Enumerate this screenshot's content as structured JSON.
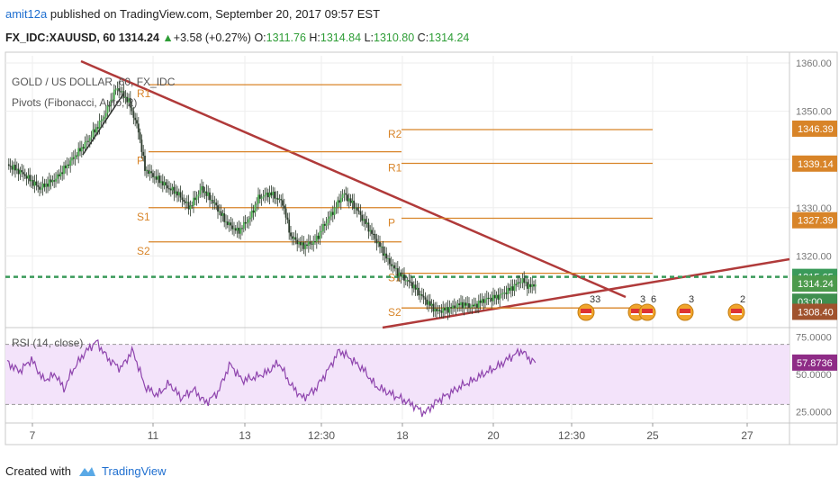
{
  "header": {
    "user": "amit12a",
    "published_text": "published on TradingView.com, September 20, 2017 09:57 EST",
    "symbol": "FX_IDC:XAUUSD, 60",
    "last": "1314.24",
    "change": "+3.58 (+0.27%)",
    "o_label": "O:",
    "o": "1311.76",
    "h_label": "H:",
    "h": "1314.84",
    "l_label": "L:",
    "l": "1310.80",
    "c_label": "C:",
    "c": "1314.24"
  },
  "legend": {
    "title": "GOLD / US DOLLAR, 60, FX_IDC",
    "indicator": "Pivots (Fibonacci, Auto, 2)",
    "rsi": "RSI (14, close)"
  },
  "footer": {
    "created_with": "Created with",
    "brand": "TradingView"
  },
  "colors": {
    "pivot": "#d88428",
    "trend": "#b03a3a",
    "up": "#4caf50",
    "down": "#ef5350",
    "rsi_line": "#8e44ad",
    "rsi_band": "#f3e3fa",
    "dash_green": "#3a9a5a",
    "candle": "#2b3a2b"
  },
  "chart_data": [
    {
      "type": "candlestick",
      "title": "GOLD / US DOLLAR, 60, FX_IDC",
      "x_ticks": [
        "7",
        "11",
        "13",
        "12:30",
        "18",
        "20",
        "12:30",
        "25",
        "27"
      ],
      "y_ticks": [
        "1360.00",
        "1350.00",
        "1340.00",
        "1330.00",
        "1320.00"
      ],
      "ylim": [
        1305.5,
        1361.5
      ],
      "price_path": [
        [
          0,
          1339
        ],
        [
          2,
          1337
        ],
        [
          4,
          1334
        ],
        [
          6,
          1336
        ],
        [
          8,
          1340
        ],
        [
          10,
          1344
        ],
        [
          12,
          1349
        ],
        [
          13.5,
          1355
        ],
        [
          15,
          1352
        ],
        [
          16.2,
          1346
        ],
        [
          17,
          1338
        ],
        [
          18.5,
          1336
        ],
        [
          20,
          1334
        ],
        [
          21,
          1333
        ],
        [
          22.5,
          1330
        ],
        [
          24,
          1334
        ],
        [
          25.5,
          1331
        ],
        [
          27,
          1327
        ],
        [
          28.5,
          1325
        ],
        [
          30,
          1328
        ],
        [
          31,
          1332
        ],
        [
          32.5,
          1333
        ],
        [
          34,
          1331
        ],
        [
          35,
          1324
        ],
        [
          36.5,
          1322
        ],
        [
          38,
          1323
        ],
        [
          39,
          1326
        ],
        [
          40.5,
          1330
        ],
        [
          41.5,
          1333
        ],
        [
          43,
          1330
        ],
        [
          44.5,
          1326
        ],
        [
          46,
          1322
        ],
        [
          47,
          1319
        ],
        [
          48.5,
          1316
        ],
        [
          50,
          1314
        ],
        [
          51.5,
          1311
        ],
        [
          53,
          1308.5
        ],
        [
          54.5,
          1309
        ],
        [
          56,
          1310
        ],
        [
          57.5,
          1309.5
        ],
        [
          59,
          1311
        ],
        [
          60.5,
          1311.5
        ],
        [
          62,
          1313
        ],
        [
          63.5,
          1315
        ],
        [
          64.5,
          1313.5
        ],
        [
          65.2,
          1314.24
        ]
      ],
      "pivot_levels_left": [
        {
          "label": "R1",
          "value": 1355.5
        },
        {
          "label": "P",
          "value": 1341.6
        },
        {
          "label": "S1",
          "value": 1330.0
        },
        {
          "label": "S2",
          "value": 1322.9
        }
      ],
      "pivot_levels_right": [
        {
          "label": "R2",
          "value": 1346.2
        },
        {
          "label": "R1",
          "value": 1339.2
        },
        {
          "label": "P",
          "value": 1327.8
        },
        {
          "label": "S1",
          "value": 1316.4
        },
        {
          "label": "S2",
          "value": 1309.2
        }
      ],
      "price_labels": [
        {
          "text": "1346.39",
          "value": 1346.39
        },
        {
          "text": "1339.14",
          "value": 1339.14
        },
        {
          "text": "1327.39",
          "value": 1327.39
        },
        {
          "text": "1315.65",
          "value": 1315.65
        },
        {
          "text": "1314.24",
          "value": 1314.24
        },
        {
          "text": "03:00",
          "value": 1310.5
        },
        {
          "text": "1308.40",
          "value": 1308.4
        }
      ],
      "current_price_line": 1315.65,
      "event_badges": [
        "33",
        "3",
        "6",
        "3",
        "2"
      ]
    },
    {
      "type": "line",
      "title": "RSI (14, close)",
      "y_ticks": [
        "75.0000",
        "50.0000",
        "25.0000"
      ],
      "ylim": [
        20,
        80
      ],
      "band": [
        30,
        70
      ],
      "last_value": "57.8736",
      "values": [
        [
          0,
          58
        ],
        [
          1.5,
          52
        ],
        [
          3,
          60
        ],
        [
          4.5,
          46
        ],
        [
          6,
          50
        ],
        [
          7,
          40
        ],
        [
          8,
          52
        ],
        [
          9.5,
          64
        ],
        [
          11,
          72
        ],
        [
          12.5,
          60
        ],
        [
          14,
          54
        ],
        [
          15.5,
          66
        ],
        [
          17,
          42
        ],
        [
          18.5,
          36
        ],
        [
          20,
          44
        ],
        [
          21.5,
          34
        ],
        [
          23,
          40
        ],
        [
          24.5,
          31
        ],
        [
          26,
          38
        ],
        [
          27.5,
          57
        ],
        [
          29,
          46
        ],
        [
          30.5,
          48
        ],
        [
          32,
          51
        ],
        [
          33.5,
          58
        ],
        [
          35,
          43
        ],
        [
          36.5,
          34
        ],
        [
          38,
          40
        ],
        [
          39.5,
          52
        ],
        [
          41,
          66
        ],
        [
          42.5,
          60
        ],
        [
          44,
          53
        ],
        [
          45.5,
          42
        ],
        [
          47,
          38
        ],
        [
          48.5,
          34
        ],
        [
          50,
          30
        ],
        [
          51.5,
          24
        ],
        [
          53,
          32
        ],
        [
          54.5,
          37
        ],
        [
          56,
          42
        ],
        [
          57.5,
          46
        ],
        [
          59,
          51
        ],
        [
          60.5,
          55
        ],
        [
          62,
          61
        ],
        [
          63.5,
          66
        ],
        [
          64.5,
          60
        ],
        [
          65.2,
          57.87
        ]
      ]
    }
  ]
}
